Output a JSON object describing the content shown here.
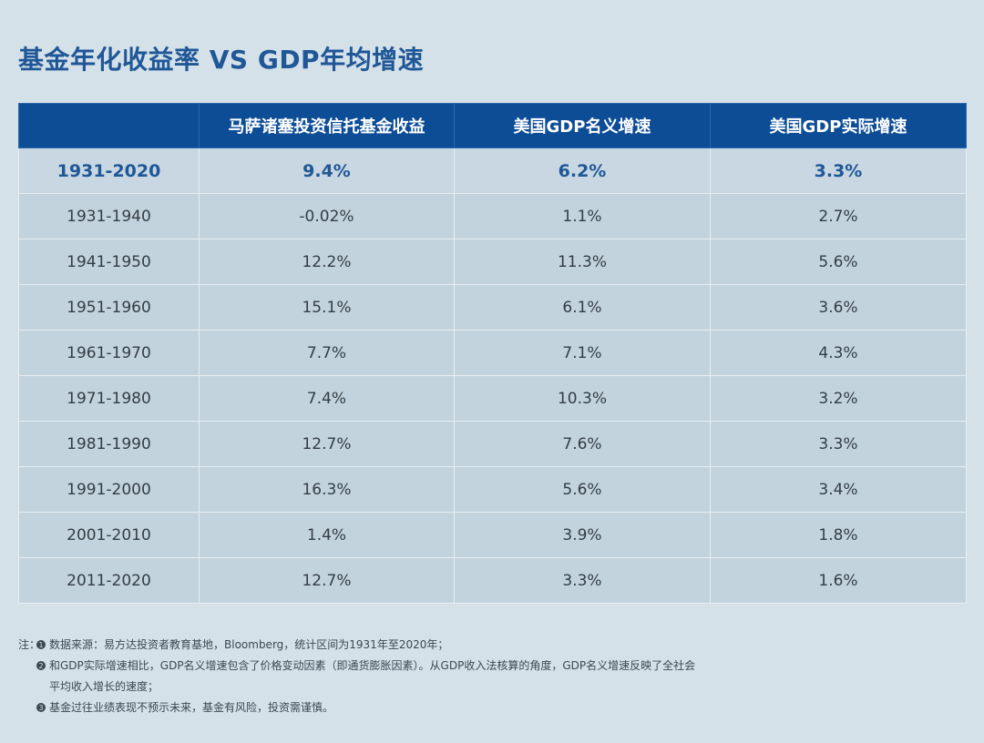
{
  "title": "基金年化收益率 VS GDP年均增速",
  "table": {
    "headers": [
      "",
      "马萨诸塞投资信托基金收益",
      "美国GDP名义增速",
      "美国GDP实际增速"
    ],
    "summary_row": [
      "1931-2020",
      "9.4%",
      "6.2%",
      "3.3%"
    ],
    "rows": [
      [
        "1931-1940",
        "-0.02%",
        "1.1%",
        "2.7%"
      ],
      [
        "1941-1950",
        "12.2%",
        "11.3%",
        "5.6%"
      ],
      [
        "1951-1960",
        "15.1%",
        "6.1%",
        "3.6%"
      ],
      [
        "1961-1970",
        "7.7%",
        "7.1%",
        "4.3%"
      ],
      [
        "1971-1980",
        "7.4%",
        "10.3%",
        "3.2%"
      ],
      [
        "1981-1990",
        "12.7%",
        "7.6%",
        "3.3%"
      ],
      [
        "1991-2000",
        "16.3%",
        "5.6%",
        "3.4%"
      ],
      [
        "2001-2010",
        "1.4%",
        "3.9%",
        "1.8%"
      ],
      [
        "2011-2020",
        "12.7%",
        "3.3%",
        "1.6%"
      ]
    ]
  },
  "chart_data": {
    "type": "table",
    "title": "基金年化收益率 VS GDP年均增速",
    "columns": [
      "马萨诸塞投资信托基金收益",
      "美国GDP名义增速",
      "美国GDP实际增速"
    ],
    "categories": [
      "1931-2020",
      "1931-1940",
      "1941-1950",
      "1951-1960",
      "1961-1970",
      "1971-1980",
      "1981-1990",
      "1991-2000",
      "2001-2010",
      "2011-2020"
    ],
    "series": [
      {
        "name": "马萨诸塞投资信托基金收益",
        "values": [
          9.4,
          -0.02,
          12.2,
          15.1,
          7.7,
          7.4,
          12.7,
          16.3,
          1.4,
          12.7
        ]
      },
      {
        "name": "美国GDP名义增速",
        "values": [
          6.2,
          1.1,
          11.3,
          6.1,
          7.1,
          10.3,
          7.6,
          5.6,
          3.9,
          3.3
        ]
      },
      {
        "name": "美国GDP实际增速",
        "values": [
          3.3,
          2.7,
          5.6,
          3.6,
          4.3,
          3.2,
          3.3,
          3.4,
          1.8,
          1.6
        ]
      }
    ]
  },
  "notes": {
    "prefix": "注：",
    "items": [
      {
        "marker": "1",
        "text": "数据来源：易方达投资者教育基地，Bloomberg，统计区间为1931年至2020年；"
      },
      {
        "marker": "2",
        "text": "和GDP实际增速相比，GDP名义增速包含了价格变动因素（即通货膨胀因素）。从GDP收入法核算的角度，GDP名义增速反映了全社会",
        "continuation": "平均收入增长的速度；"
      },
      {
        "marker": "3",
        "text": "基金过往业绩表现不预示未来，基金有风险，投资需谨慎。"
      }
    ]
  },
  "colors": {
    "background": "#d5e1e9",
    "header_bg": "#0d4d96",
    "accent": "#1f5797",
    "cell_bg": "#c3d3dd"
  }
}
